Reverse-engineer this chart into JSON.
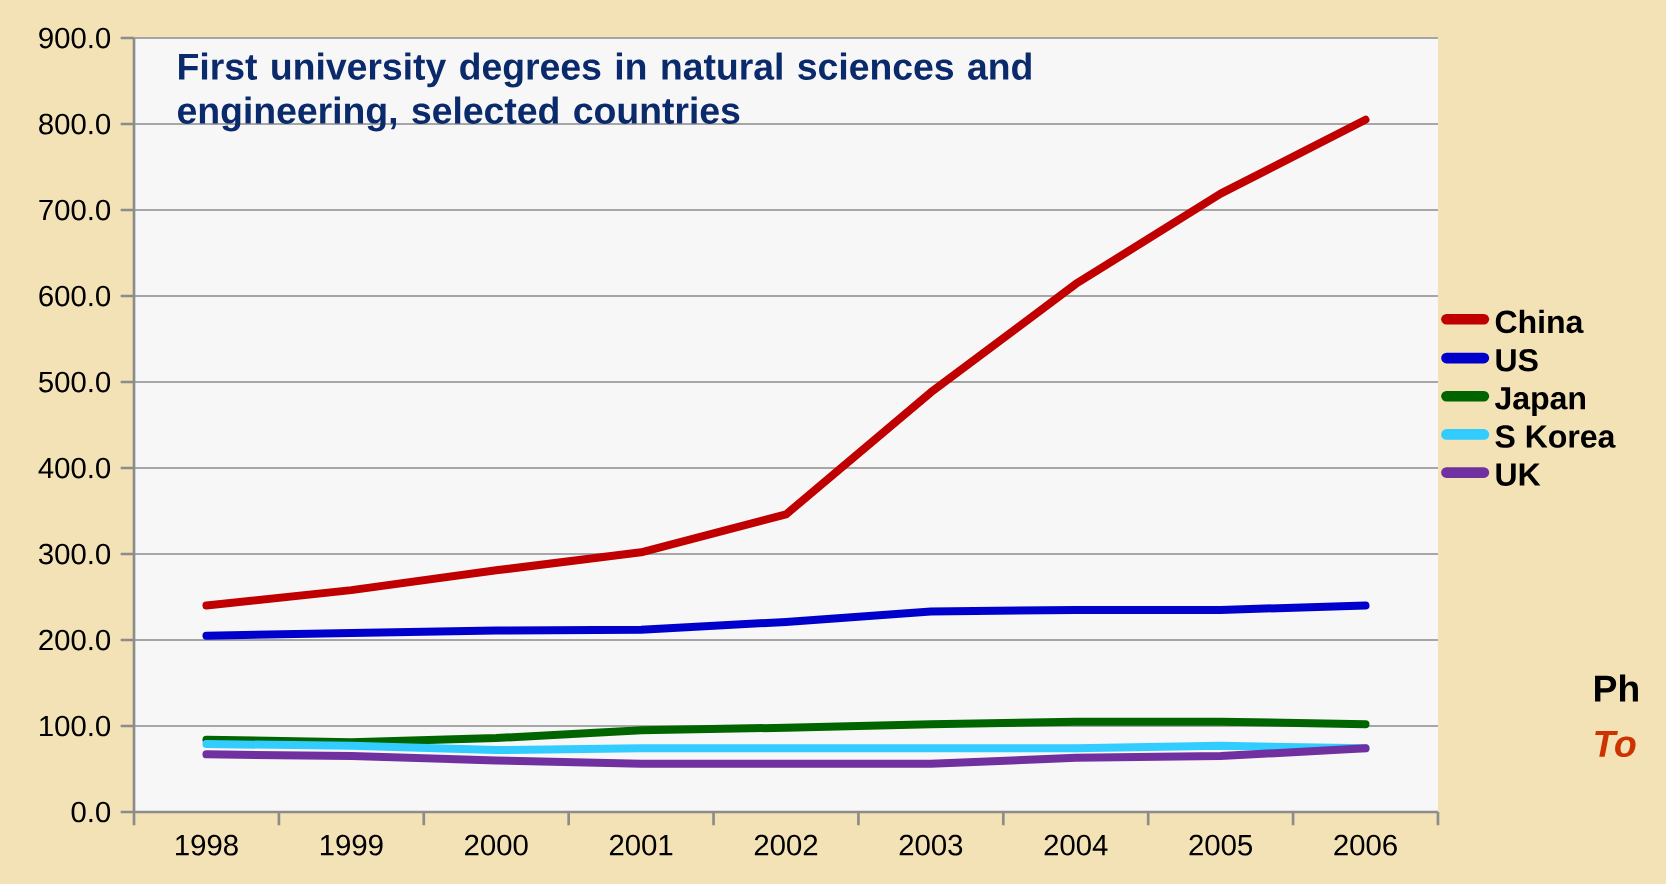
{
  "chart_data": {
    "type": "line",
    "title": "First university degrees in natural sciences and engineering, selected countries",
    "categories": [
      "1998",
      "1999",
      "2000",
      "2001",
      "2002",
      "2003",
      "2004",
      "2005",
      "2006"
    ],
    "series": [
      {
        "name": "China",
        "color": "#c00000",
        "values": [
          240,
          258,
          281,
          302,
          346,
          488,
          614,
          719,
          805
        ]
      },
      {
        "name": "US",
        "color": "#0000cc",
        "values": [
          205,
          208,
          211,
          212,
          221,
          233,
          235,
          235,
          240
        ]
      },
      {
        "name": "Japan",
        "color": "#006400",
        "values": [
          84,
          81,
          86,
          95,
          98,
          102,
          105,
          105,
          102
        ]
      },
      {
        "name": "S Korea",
        "color": "#33ccff",
        "values": [
          79,
          77,
          72,
          74,
          74,
          74,
          74,
          77,
          74
        ]
      },
      {
        "name": "UK",
        "color": "#7030a0",
        "values": [
          67,
          65,
          60,
          56,
          56,
          56,
          63,
          65,
          74
        ]
      }
    ],
    "ylim": [
      0,
      900
    ],
    "yticks": [
      {
        "value": 0,
        "label": "0.0"
      },
      {
        "value": 100,
        "label": "100.0"
      },
      {
        "value": 200,
        "label": "200.0"
      },
      {
        "value": 300,
        "label": "300.0"
      },
      {
        "value": 400,
        "label": "400.0"
      },
      {
        "value": 500,
        "label": "500.0"
      },
      {
        "value": 600,
        "label": "600.0"
      },
      {
        "value": 700,
        "label": "700.0"
      },
      {
        "value": 800,
        "label": "800.0"
      },
      {
        "value": 900,
        "label": "900.0"
      }
    ],
    "grid": "y",
    "legend": "right",
    "marker": "none",
    "line_style": "solid",
    "annotations": [
      "Ph",
      "To"
    ]
  }
}
